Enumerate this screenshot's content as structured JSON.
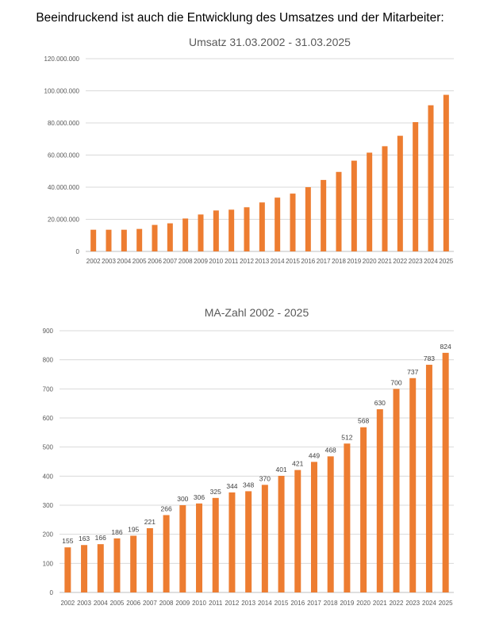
{
  "page": {
    "heading": "Beeindruckend ist auch die Entwicklung des Umsatzes und der Mitarbeiter:"
  },
  "colors": {
    "bar": "#ED7D31",
    "grid": "#D9D9D9",
    "text": "#595959"
  },
  "chart_data": [
    {
      "type": "bar",
      "title": "Umsatz 31.03.2002 - 31.03.2025",
      "xlabel": "",
      "ylabel": "",
      "ylim": [
        0,
        120000000
      ],
      "yticks": [
        0,
        20000000,
        40000000,
        60000000,
        80000000,
        100000000,
        120000000
      ],
      "ytick_labels": [
        "0",
        "20.000.000",
        "40.000.000",
        "60.000.000",
        "80.000.000",
        "100.000.000",
        "120.000.000"
      ],
      "grid": true,
      "categories": [
        "2002",
        "2003",
        "2004",
        "2005",
        "2006",
        "2007",
        "2008",
        "2009",
        "2010",
        "2011",
        "2012",
        "2013",
        "2014",
        "2015",
        "2016",
        "2017",
        "2018",
        "2019",
        "2020",
        "2021",
        "2022",
        "2023",
        "2024",
        "2025"
      ],
      "values": [
        13500000,
        13500000,
        13500000,
        14000000,
        16500000,
        17500000,
        20500000,
        23000000,
        25500000,
        26000000,
        27500000,
        30500000,
        33500000,
        36000000,
        40000000,
        44500000,
        49500000,
        56500000,
        61500000,
        65500000,
        72000000,
        80500000,
        91000000,
        97500000
      ],
      "data_labels": false
    },
    {
      "type": "bar",
      "title": "MA-Zahl 2002 - 2025",
      "xlabel": "",
      "ylabel": "",
      "ylim": [
        0,
        900
      ],
      "yticks": [
        0,
        100,
        200,
        300,
        400,
        500,
        600,
        700,
        800,
        900
      ],
      "ytick_labels": [
        "0",
        "100",
        "200",
        "300",
        "400",
        "500",
        "600",
        "700",
        "800",
        "900"
      ],
      "grid": true,
      "categories": [
        "2002",
        "2003",
        "2004",
        "2005",
        "2006",
        "2007",
        "2008",
        "2009",
        "2010",
        "2011",
        "2012",
        "2013",
        "2014",
        "2015",
        "2016",
        "2017",
        "2018",
        "2019",
        "2020",
        "2021",
        "2022",
        "2023",
        "2024",
        "2025"
      ],
      "values": [
        155,
        163,
        166,
        186,
        195,
        221,
        266,
        300,
        306,
        325,
        344,
        348,
        370,
        401,
        421,
        449,
        468,
        512,
        568,
        630,
        700,
        737,
        783,
        824
      ],
      "data_labels": true
    }
  ]
}
